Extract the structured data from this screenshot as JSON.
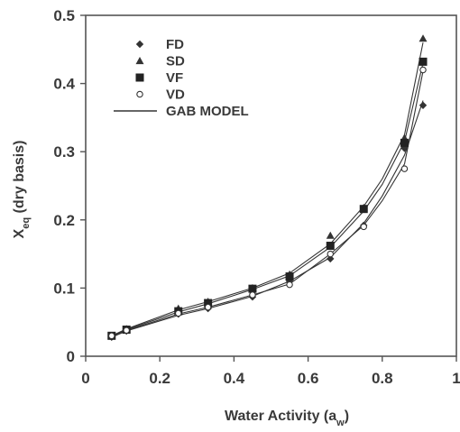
{
  "chart_data": {
    "type": "scatter",
    "xlabel": "Water Activity (a",
    "xlabel_sub": "w",
    "xlabel_end": ")",
    "ylabel": "X",
    "ylabel_sub": "eq",
    "ylabel_rest": " (dry basis)",
    "xlim": [
      0,
      1
    ],
    "ylim": [
      0,
      0.5
    ],
    "x_ticks": [
      0,
      0.2,
      0.4,
      0.6,
      0.8,
      1
    ],
    "x_tick_labels": [
      "0",
      "0.2",
      "0.4",
      "0.6",
      "0.8",
      "1"
    ],
    "y_ticks": [
      0,
      0.1,
      0.2,
      0.3,
      0.4,
      0.5
    ],
    "y_tick_labels": [
      "0",
      "0.1",
      "0.2",
      "0.3",
      "0.4",
      "0.5"
    ],
    "grid": false,
    "legend_position": "top-left",
    "series": [
      {
        "name": "FD",
        "marker": "diamond",
        "color": "#333333",
        "points": [
          [
            0.07,
            0.028
          ],
          [
            0.11,
            0.037
          ],
          [
            0.25,
            0.062
          ],
          [
            0.33,
            0.07
          ],
          [
            0.45,
            0.087
          ],
          [
            0.55,
            0.11
          ],
          [
            0.66,
            0.143
          ],
          [
            0.75,
            0.192
          ],
          [
            0.86,
            0.305
          ],
          [
            0.91,
            0.368
          ]
        ]
      },
      {
        "name": "SD",
        "marker": "triangle",
        "color": "#333333",
        "points": [
          [
            0.07,
            0.03
          ],
          [
            0.11,
            0.04
          ],
          [
            0.25,
            0.07
          ],
          [
            0.33,
            0.08
          ],
          [
            0.45,
            0.1
          ],
          [
            0.55,
            0.12
          ],
          [
            0.66,
            0.177
          ],
          [
            0.75,
            0.218
          ],
          [
            0.86,
            0.32
          ],
          [
            0.91,
            0.466
          ]
        ]
      },
      {
        "name": "VF",
        "marker": "square",
        "color": "#222222",
        "points": [
          [
            0.07,
            0.03
          ],
          [
            0.11,
            0.039
          ],
          [
            0.25,
            0.066
          ],
          [
            0.33,
            0.078
          ],
          [
            0.45,
            0.099
          ],
          [
            0.55,
            0.117
          ],
          [
            0.66,
            0.162
          ],
          [
            0.75,
            0.216
          ],
          [
            0.86,
            0.313
          ],
          [
            0.91,
            0.432
          ]
        ]
      },
      {
        "name": "VD",
        "marker": "circle-open",
        "color": "#333333",
        "points": [
          [
            0.07,
            0.03
          ],
          [
            0.11,
            0.038
          ],
          [
            0.25,
            0.063
          ],
          [
            0.33,
            0.072
          ],
          [
            0.45,
            0.09
          ],
          [
            0.55,
            0.105
          ],
          [
            0.66,
            0.15
          ],
          [
            0.75,
            0.19
          ],
          [
            0.86,
            0.275
          ],
          [
            0.91,
            0.42
          ]
        ]
      }
    ],
    "model_legend": "GAB MODEL",
    "model_curves": [
      {
        "x": [
          0.07,
          0.11,
          0.25,
          0.33,
          0.45,
          0.55,
          0.66,
          0.75,
          0.8,
          0.86,
          0.91
        ],
        "y": [
          0.028,
          0.037,
          0.06,
          0.07,
          0.088,
          0.11,
          0.145,
          0.195,
          0.235,
          0.295,
          0.375
        ]
      },
      {
        "x": [
          0.07,
          0.11,
          0.25,
          0.33,
          0.45,
          0.55,
          0.66,
          0.75,
          0.8,
          0.86,
          0.91
        ],
        "y": [
          0.03,
          0.04,
          0.068,
          0.08,
          0.1,
          0.122,
          0.165,
          0.22,
          0.26,
          0.325,
          0.46
        ]
      },
      {
        "x": [
          0.07,
          0.11,
          0.25,
          0.33,
          0.45,
          0.55,
          0.66,
          0.75,
          0.8,
          0.86,
          0.91
        ],
        "y": [
          0.03,
          0.039,
          0.065,
          0.077,
          0.098,
          0.118,
          0.16,
          0.213,
          0.252,
          0.315,
          0.43
        ]
      },
      {
        "x": [
          0.07,
          0.11,
          0.25,
          0.33,
          0.45,
          0.55,
          0.66,
          0.75,
          0.8,
          0.86,
          0.91
        ],
        "y": [
          0.029,
          0.038,
          0.062,
          0.072,
          0.09,
          0.106,
          0.15,
          0.192,
          0.228,
          0.282,
          0.418
        ]
      }
    ]
  }
}
